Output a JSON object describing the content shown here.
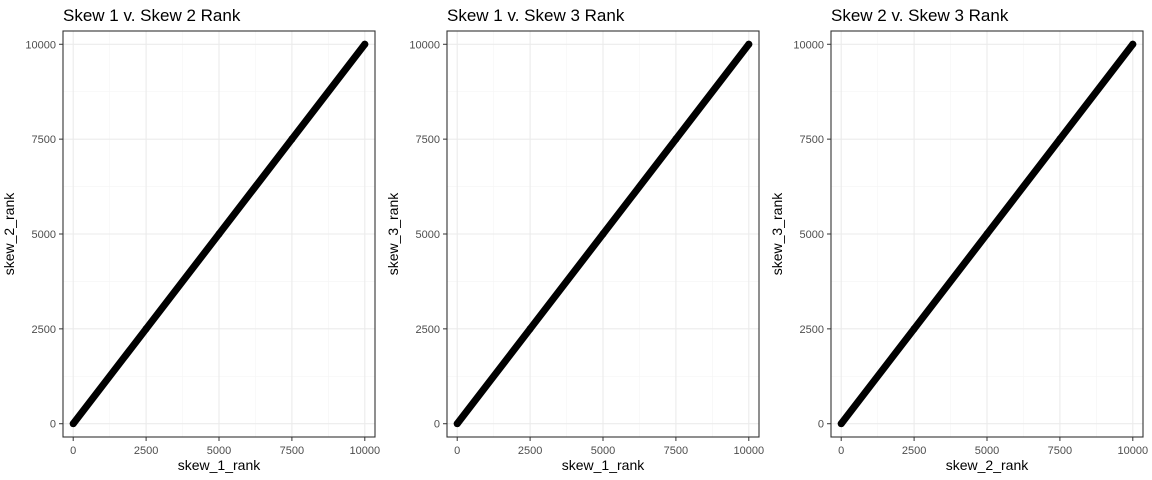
{
  "chart_data": [
    {
      "type": "scatter",
      "title": "Skew 1 v. Skew 2 Rank",
      "xlabel": "skew_1_rank",
      "ylabel": "skew_2_rank",
      "xlim": [
        -350,
        10350
      ],
      "ylim": [
        -350,
        10350
      ],
      "x_ticks": [
        0,
        2500,
        5000,
        7500,
        10000
      ],
      "y_ticks": [
        0,
        2500,
        5000,
        7500,
        10000
      ],
      "grid": true,
      "series": [
        {
          "x": [
            1,
            2500,
            5000,
            7500,
            10000
          ],
          "y": [
            1,
            2500,
            5000,
            7500,
            10000
          ]
        }
      ]
    },
    {
      "type": "scatter",
      "title": "Skew 1 v. Skew 3 Rank",
      "xlabel": "skew_1_rank",
      "ylabel": "skew_3_rank",
      "xlim": [
        -350,
        10350
      ],
      "ylim": [
        -350,
        10350
      ],
      "x_ticks": [
        0,
        2500,
        5000,
        7500,
        10000
      ],
      "y_ticks": [
        0,
        2500,
        5000,
        7500,
        10000
      ],
      "grid": true,
      "series": [
        {
          "x": [
            1,
            2500,
            5000,
            7500,
            10000
          ],
          "y": [
            1,
            2500,
            5000,
            7500,
            10000
          ]
        }
      ]
    },
    {
      "type": "scatter",
      "title": "Skew 2 v. Skew 3 Rank",
      "xlabel": "skew_2_rank",
      "ylabel": "skew_3_rank",
      "xlim": [
        -350,
        10350
      ],
      "ylim": [
        -350,
        10350
      ],
      "x_ticks": [
        0,
        2500,
        5000,
        7500,
        10000
      ],
      "y_ticks": [
        0,
        2500,
        5000,
        7500,
        10000
      ],
      "grid": true,
      "series": [
        {
          "x": [
            1,
            2500,
            5000,
            7500,
            10000
          ],
          "y": [
            1,
            2500,
            5000,
            7500,
            10000
          ]
        }
      ]
    }
  ],
  "colors": {
    "points": "#000000",
    "panel_border": "#333333",
    "grid_major": "#ebebeb",
    "grid_minor": "#f5f5f5",
    "tick_label": "#4d4d4d"
  }
}
